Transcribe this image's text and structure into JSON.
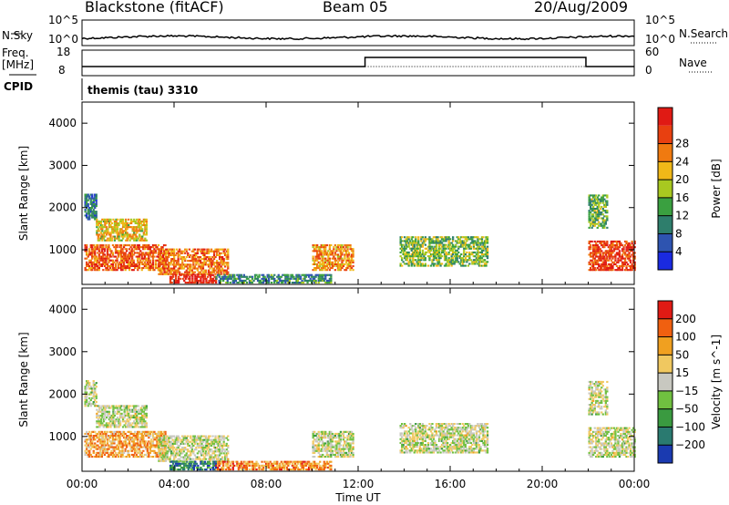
{
  "header": {
    "station": "Blackstone (fitACF)",
    "beam": "Beam 05",
    "date": "20/Aug/2009"
  },
  "top_panels": {
    "nsky_label": "N.Sky",
    "nsky_ticks": [
      "10^5",
      "10^0"
    ],
    "nsearch_label": "N.Search",
    "nsearch_ticks": [
      "10^5",
      "10^0"
    ],
    "freq_label": "Freq.",
    "freq_unit": "[MHz]",
    "freq_ticks": [
      "18",
      "8"
    ],
    "nave_label": "Nave",
    "nave_ticks": [
      "60",
      "0"
    ],
    "cpid_label": "CPID",
    "cpid_text": "themis (tau) 3310"
  },
  "chart_data": [
    {
      "type": "heatmap",
      "name": "power",
      "ylabel": "Slant Range [km]",
      "xlabel": "",
      "x_ticks": [
        "00:00",
        "04:00",
        "08:00",
        "12:00",
        "16:00",
        "20:00",
        "00:00"
      ],
      "y_ticks": [
        "1000",
        "2000",
        "3000",
        "4000"
      ],
      "xlim": [
        0,
        24
      ],
      "ylim": [
        180,
        4500
      ],
      "colorbar": {
        "label": "Power [dB]",
        "ticks": [
          "4",
          "8",
          "12",
          "16",
          "20",
          "24",
          "28"
        ],
        "colors": [
          "#1a2ae0",
          "#2e54b0",
          "#2e7e6c",
          "#3aa040",
          "#a8c820",
          "#f0b818",
          "#f07a10",
          "#e84010",
          "#e01a14"
        ]
      },
      "echo_regions": [
        {
          "t0": 0.1,
          "t1": 3.6,
          "r0": 500,
          "r1": 1100,
          "level": 0.8
        },
        {
          "t0": 0.6,
          "t1": 2.8,
          "r0": 1200,
          "r1": 1700,
          "level": 0.6
        },
        {
          "t0": 0.1,
          "t1": 0.6,
          "r0": 1700,
          "r1": 2300,
          "level": 0.25
        },
        {
          "t0": 3.3,
          "t1": 6.3,
          "r0": 400,
          "r1": 1000,
          "level": 0.75
        },
        {
          "t0": 3.8,
          "t1": 5.8,
          "r0": 200,
          "r1": 400,
          "level": 0.95
        },
        {
          "t0": 5.8,
          "t1": 10.8,
          "r0": 200,
          "r1": 400,
          "level": 0.3
        },
        {
          "t0": 10.0,
          "t1": 11.8,
          "r0": 500,
          "r1": 1100,
          "level": 0.7
        },
        {
          "t0": 13.8,
          "t1": 17.6,
          "r0": 600,
          "r1": 1300,
          "level": 0.45
        },
        {
          "t0": 22.0,
          "t1": 24.0,
          "r0": 500,
          "r1": 1200,
          "level": 0.85
        },
        {
          "t0": 22.0,
          "t1": 22.8,
          "r0": 1500,
          "r1": 2300,
          "level": 0.4
        }
      ]
    },
    {
      "type": "heatmap",
      "name": "velocity",
      "ylabel": "Slant Range [km]",
      "xlabel": "Time UT",
      "x_ticks": [
        "00:00",
        "04:00",
        "08:00",
        "12:00",
        "16:00",
        "20:00",
        "00:00"
      ],
      "y_ticks": [
        "1000",
        "2000",
        "3000",
        "4000"
      ],
      "xlim": [
        0,
        24
      ],
      "ylim": [
        180,
        4500
      ],
      "colorbar": {
        "label": "Velocity [m s^-1]",
        "ticks": [
          "200",
          "100",
          "50",
          "15",
          "-15",
          "-50",
          "-100",
          "-200"
        ],
        "colors": [
          "#1a3ab0",
          "#2a7a70",
          "#3a9a40",
          "#70c040",
          "#c8c8c0",
          "#f0c860",
          "#f0a020",
          "#f06010",
          "#e01a14"
        ]
      },
      "echo_regions": [
        {
          "t0": 0.1,
          "t1": 3.6,
          "r0": 500,
          "r1": 1100,
          "level": 0.7
        },
        {
          "t0": 0.6,
          "t1": 2.8,
          "r0": 1200,
          "r1": 1700,
          "level": 0.5
        },
        {
          "t0": 0.1,
          "t1": 0.6,
          "r0": 1700,
          "r1": 2300,
          "level": 0.5
        },
        {
          "t0": 3.3,
          "t1": 6.3,
          "r0": 400,
          "r1": 1000,
          "level": 0.5
        },
        {
          "t0": 3.8,
          "t1": 5.8,
          "r0": 200,
          "r1": 400,
          "level": 0.2
        },
        {
          "t0": 5.8,
          "t1": 10.8,
          "r0": 200,
          "r1": 400,
          "level": 0.75
        },
        {
          "t0": 10.0,
          "t1": 11.8,
          "r0": 500,
          "r1": 1100,
          "level": 0.5
        },
        {
          "t0": 13.8,
          "t1": 17.6,
          "r0": 600,
          "r1": 1300,
          "level": 0.5
        },
        {
          "t0": 22.0,
          "t1": 24.0,
          "r0": 500,
          "r1": 1200,
          "level": 0.5
        },
        {
          "t0": 22.0,
          "t1": 22.8,
          "r0": 1500,
          "r1": 2300,
          "level": 0.5
        }
      ]
    }
  ]
}
